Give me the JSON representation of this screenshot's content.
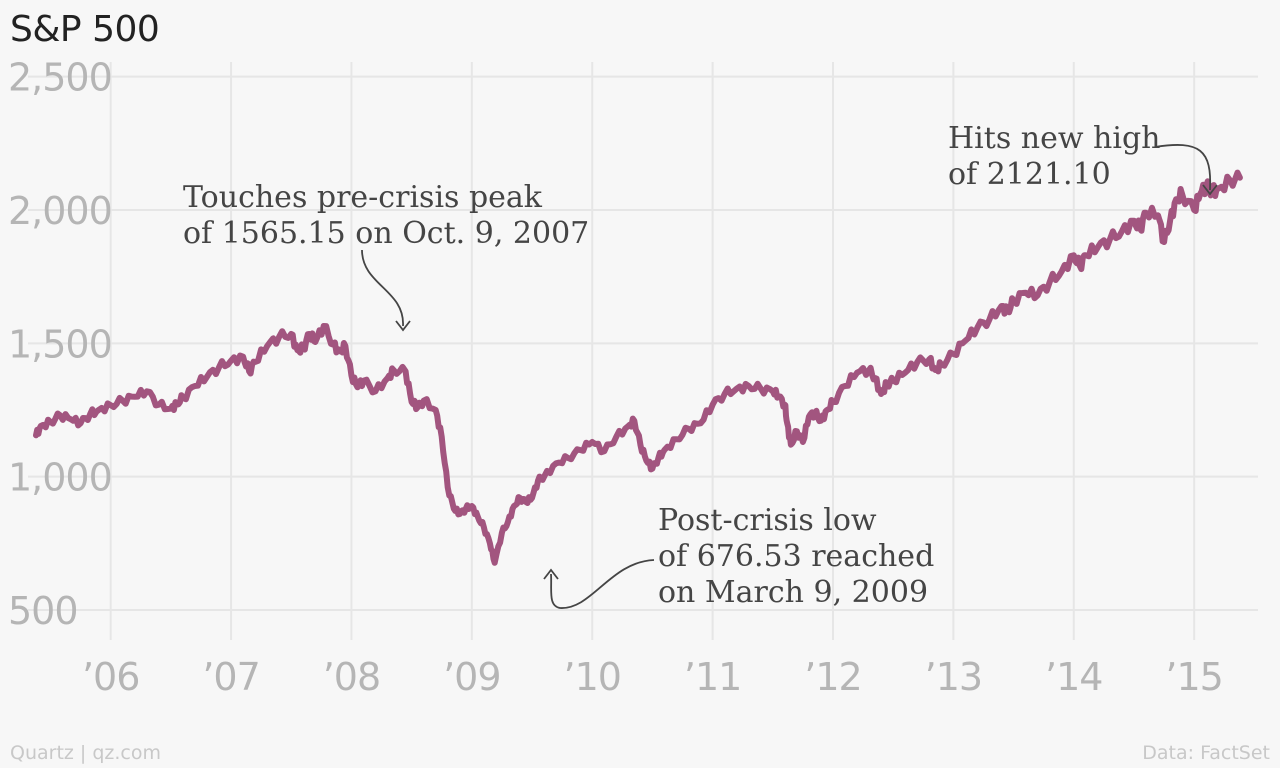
{
  "title": "S&P 500",
  "footer": {
    "credit": "Quartz | qz.com",
    "source": "Data: FactSet"
  },
  "colors": {
    "line": "#a2557f",
    "grid": "#e6e6e6",
    "tick_text": "#b5b5b5",
    "annotation_text": "#454545",
    "arrow": "#454545"
  },
  "chart_data": {
    "type": "line",
    "title": "S&P 500",
    "xlabel": "",
    "ylabel": "",
    "ylim": [
      350,
      2600
    ],
    "xlim": [
      2005.33,
      2015.63
    ],
    "y_ticks": [
      500,
      1000,
      1500,
      2000,
      2500
    ],
    "y_tick_labels": [
      "500",
      "1,000",
      "1,500",
      "2,000",
      "2,500"
    ],
    "x_ticks": [
      2006,
      2007,
      2008,
      2009,
      2010,
      2011,
      2012,
      2013,
      2014,
      2015
    ],
    "x_tick_labels": [
      "’06",
      "’07",
      "’08",
      "’09",
      "’10",
      "’11",
      "’12",
      "’13",
      "’14",
      "’15"
    ],
    "grid": true,
    "series": [
      {
        "x": [
          2005.38,
          2005.42,
          2005.5,
          2005.58,
          2005.67,
          2005.75,
          2005.83,
          2005.9,
          2006.0,
          2006.1,
          2006.2,
          2006.3,
          2006.4,
          2006.5,
          2006.55,
          2006.6,
          2006.7,
          2006.8,
          2006.9,
          2007.0,
          2007.1,
          2007.15,
          2007.2,
          2007.3,
          2007.4,
          2007.5,
          2007.55,
          2007.6,
          2007.65,
          2007.7,
          2007.77,
          2007.85,
          2007.9,
          2007.95,
          2008.0,
          2008.05,
          2008.1,
          2008.2,
          2008.3,
          2008.35,
          2008.45,
          2008.5,
          2008.55,
          2008.6,
          2008.7,
          2008.75,
          2008.8,
          2008.85,
          2008.9,
          2008.95,
          2009.0,
          2009.05,
          2009.1,
          2009.15,
          2009.19,
          2009.25,
          2009.3,
          2009.35,
          2009.4,
          2009.45,
          2009.5,
          2009.55,
          2009.6,
          2009.7,
          2009.8,
          2009.9,
          2010.0,
          2010.1,
          2010.2,
          2010.3,
          2010.35,
          2010.4,
          2010.45,
          2010.5,
          2010.55,
          2010.6,
          2010.7,
          2010.8,
          2010.9,
          2011.0,
          2011.1,
          2011.2,
          2011.3,
          2011.4,
          2011.5,
          2011.55,
          2011.6,
          2011.62,
          2011.65,
          2011.7,
          2011.75,
          2011.8,
          2011.85,
          2011.9,
          2011.95,
          2012.0,
          2012.1,
          2012.2,
          2012.3,
          2012.35,
          2012.4,
          2012.45,
          2012.5,
          2012.6,
          2012.7,
          2012.8,
          2012.85,
          2012.9,
          2013.0,
          2013.1,
          2013.2,
          2013.3,
          2013.4,
          2013.45,
          2013.5,
          2013.6,
          2013.7,
          2013.8,
          2013.9,
          2014.0,
          2014.05,
          2014.1,
          2014.2,
          2014.3,
          2014.4,
          2014.5,
          2014.55,
          2014.6,
          2014.7,
          2014.75,
          2014.8,
          2014.85,
          2014.9,
          2015.0,
          2015.05,
          2015.1,
          2015.15,
          2015.2,
          2015.3,
          2015.38
        ],
        "values": [
          1155,
          1190,
          1205,
          1230,
          1215,
          1200,
          1235,
          1250,
          1268,
          1285,
          1300,
          1320,
          1270,
          1255,
          1275,
          1295,
          1340,
          1375,
          1410,
          1435,
          1450,
          1395,
          1430,
          1490,
          1525,
          1535,
          1475,
          1480,
          1535,
          1505,
          1565,
          1495,
          1470,
          1490,
          1380,
          1335,
          1360,
          1320,
          1370,
          1400,
          1395,
          1280,
          1260,
          1285,
          1250,
          1150,
          960,
          880,
          860,
          880,
          890,
          850,
          810,
          750,
          677,
          790,
          830,
          890,
          920,
          905,
          920,
          985,
          1000,
          1050,
          1070,
          1100,
          1130,
          1095,
          1150,
          1190,
          1210,
          1120,
          1060,
          1030,
          1070,
          1100,
          1140,
          1180,
          1200,
          1270,
          1310,
          1330,
          1340,
          1330,
          1320,
          1300,
          1270,
          1200,
          1120,
          1170,
          1130,
          1225,
          1240,
          1210,
          1250,
          1280,
          1340,
          1390,
          1400,
          1370,
          1310,
          1350,
          1360,
          1390,
          1430,
          1440,
          1400,
          1420,
          1460,
          1510,
          1560,
          1590,
          1640,
          1620,
          1660,
          1690,
          1680,
          1730,
          1770,
          1830,
          1790,
          1830,
          1860,
          1890,
          1920,
          1960,
          1930,
          1990,
          1980,
          1880,
          1960,
          2040,
          2060,
          2000,
          2060,
          2090,
          2070,
          2080,
          2110,
          2121
        ]
      }
    ],
    "annotations": [
      {
        "text_lines": [
          "Touches pre-crisis peak",
          "of 1565.15 on Oct. 9, 2007"
        ],
        "x": 2007.77,
        "y": 1565.15
      },
      {
        "text_lines": [
          "Post-crisis low",
          "of 676.53 reached",
          "on March 9, 2009"
        ],
        "x": 2009.19,
        "y": 676.53
      },
      {
        "text_lines": [
          "Hits new high",
          "of 2121.10"
        ],
        "x": 2015.38,
        "y": 2121.1
      }
    ]
  }
}
